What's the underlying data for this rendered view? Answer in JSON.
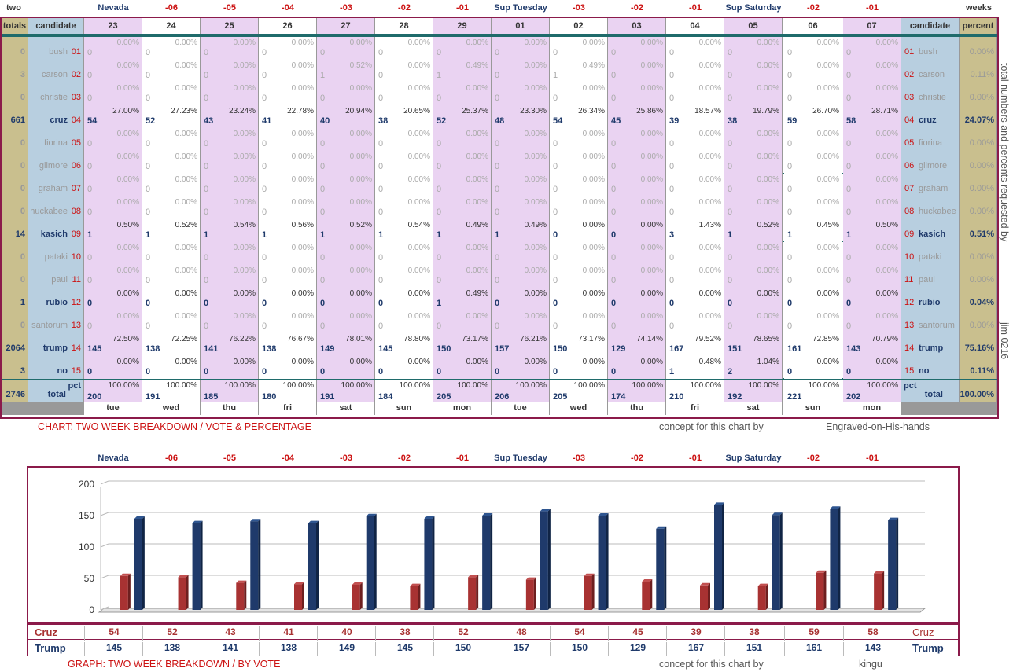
{
  "corner_left": "two",
  "corner_right": "weeks",
  "side_note": "total numbers and percents requested by",
  "side_sig": "jim 0216",
  "col_headers": {
    "totals": "totals",
    "candidate": "candidate",
    "candidate2": "candidate",
    "percent": "percent"
  },
  "top_labels": [
    "Nevada",
    "-06",
    "-05",
    "-04",
    "-03",
    "-02",
    "-01",
    "Sup Tuesday",
    "-03",
    "-02",
    "-01",
    "Sup Saturday",
    "-02",
    "-01"
  ],
  "top_label_colors": [
    "#1f3a6b",
    "#cc1111",
    "#cc1111",
    "#cc1111",
    "#cc1111",
    "#cc1111",
    "#cc1111",
    "#1f3a6b",
    "#cc1111",
    "#cc1111",
    "#cc1111",
    "#1f3a6b",
    "#cc1111",
    "#cc1111"
  ],
  "dates": [
    "23",
    "24",
    "25",
    "26",
    "27",
    "28",
    "29",
    "01",
    "02",
    "03",
    "04",
    "05",
    "06",
    "07"
  ],
  "days": [
    "tue",
    "wed",
    "thu",
    "fri",
    "sat",
    "sun",
    "mon",
    "tue",
    "wed",
    "thu",
    "fri",
    "sat",
    "sun",
    "mon"
  ],
  "candidates": [
    {
      "num": "01",
      "name": "bush",
      "total": "0",
      "pct": "0.00%",
      "main": false,
      "votes": [
        "0",
        "0",
        "0",
        "0",
        "0",
        "0",
        "0",
        "0",
        "0",
        "0",
        "0",
        "0",
        "0",
        "0"
      ],
      "pcts": [
        "0.00%",
        "0.00%",
        "0.00%",
        "0.00%",
        "0.00%",
        "0.00%",
        "0.00%",
        "0.00%",
        "0.00%",
        "0.00%",
        "0.00%",
        "0.00%",
        "0.00%",
        "0.00%"
      ]
    },
    {
      "num": "02",
      "name": "carson",
      "total": "3",
      "pct": "0.11%",
      "main": false,
      "votes": [
        "0",
        "0",
        "0",
        "0",
        "1",
        "0",
        "1",
        "0",
        "1",
        "0",
        "0",
        "0",
        "0",
        "0"
      ],
      "pcts": [
        "0.00%",
        "0.00%",
        "0.00%",
        "0.00%",
        "0.52%",
        "0.00%",
        "0.49%",
        "0.00%",
        "0.49%",
        "0.00%",
        "0.00%",
        "0.00%",
        "0.00%",
        "0.00%"
      ]
    },
    {
      "num": "03",
      "name": "christie",
      "total": "0",
      "pct": "0.00%",
      "main": false,
      "votes": [
        "0",
        "0",
        "0",
        "0",
        "0",
        "0",
        "0",
        "0",
        "0",
        "0",
        "0",
        "0",
        "0",
        "0"
      ],
      "pcts": [
        "0.00%",
        "0.00%",
        "0.00%",
        "0.00%",
        "0.00%",
        "0.00%",
        "0.00%",
        "0.00%",
        "0.00%",
        "0.00%",
        "0.00%",
        "0.00%",
        "0.00%",
        "0.00%"
      ]
    },
    {
      "num": "04",
      "name": "cruz",
      "total": "661",
      "pct": "24.07%",
      "main": true,
      "votes": [
        "54",
        "52",
        "43",
        "41",
        "40",
        "38",
        "52",
        "48",
        "54",
        "45",
        "39",
        "38",
        "59",
        "58"
      ],
      "pcts": [
        "27.00%",
        "27.23%",
        "23.24%",
        "22.78%",
        "20.94%",
        "20.65%",
        "25.37%",
        "23.30%",
        "26.34%",
        "25.86%",
        "18.57%",
        "19.79%",
        "26.70%",
        "28.71%"
      ]
    },
    {
      "num": "05",
      "name": "fiorina",
      "total": "0",
      "pct": "0.00%",
      "main": false,
      "votes": [
        "0",
        "0",
        "0",
        "0",
        "0",
        "0",
        "0",
        "0",
        "0",
        "0",
        "0",
        "0",
        "0",
        "0"
      ],
      "pcts": [
        "0.00%",
        "0.00%",
        "0.00%",
        "0.00%",
        "0.00%",
        "0.00%",
        "0.00%",
        "0.00%",
        "0.00%",
        "0.00%",
        "0.00%",
        "0.00%",
        "0.00%",
        "0.00%"
      ]
    },
    {
      "num": "06",
      "name": "gilmore",
      "total": "0",
      "pct": "0.00%",
      "main": false,
      "votes": [
        "0",
        "0",
        "0",
        "0",
        "0",
        "0",
        "0",
        "0",
        "0",
        "0",
        "0",
        "0",
        "0",
        "0"
      ],
      "pcts": [
        "0.00%",
        "0.00%",
        "0.00%",
        "0.00%",
        "0.00%",
        "0.00%",
        "0.00%",
        "0.00%",
        "0.00%",
        "0.00%",
        "0.00%",
        "0.00%",
        "0.00%",
        "0.00%"
      ]
    },
    {
      "num": "07",
      "name": "graham",
      "total": "0",
      "pct": "0.00%",
      "main": false,
      "votes": [
        "0",
        "0",
        "0",
        "0",
        "0",
        "0",
        "0",
        "0",
        "0",
        "0",
        "0",
        "0",
        "0",
        "0"
      ],
      "pcts": [
        "0.00%",
        "0.00%",
        "0.00%",
        "0.00%",
        "0.00%",
        "0.00%",
        "0.00%",
        "0.00%",
        "0.00%",
        "0.00%",
        "0.00%",
        "0.00%",
        "0.00%",
        "0.00%"
      ]
    },
    {
      "num": "08",
      "name": "huckabee",
      "total": "0",
      "pct": "0.00%",
      "main": false,
      "votes": [
        "0",
        "0",
        "0",
        "0",
        "0",
        "0",
        "0",
        "0",
        "0",
        "0",
        "0",
        "0",
        "0",
        "0"
      ],
      "pcts": [
        "0.00%",
        "0.00%",
        "0.00%",
        "0.00%",
        "0.00%",
        "0.00%",
        "0.00%",
        "0.00%",
        "0.00%",
        "0.00%",
        "0.00%",
        "0.00%",
        "0.00%",
        "0.00%"
      ]
    },
    {
      "num": "09",
      "name": "kasich",
      "total": "14",
      "pct": "0.51%",
      "main": true,
      "votes": [
        "1",
        "1",
        "1",
        "1",
        "1",
        "1",
        "1",
        "1",
        "0",
        "0",
        "3",
        "1",
        "1",
        "1"
      ],
      "pcts": [
        "0.50%",
        "0.52%",
        "0.54%",
        "0.56%",
        "0.52%",
        "0.54%",
        "0.49%",
        "0.49%",
        "0.00%",
        "0.00%",
        "1.43%",
        "0.52%",
        "0.45%",
        "0.50%"
      ]
    },
    {
      "num": "10",
      "name": "pataki",
      "total": "0",
      "pct": "0.00%",
      "main": false,
      "votes": [
        "0",
        "0",
        "0",
        "0",
        "0",
        "0",
        "0",
        "0",
        "0",
        "0",
        "0",
        "0",
        "0",
        "0"
      ],
      "pcts": [
        "0.00%",
        "0.00%",
        "0.00%",
        "0.00%",
        "0.00%",
        "0.00%",
        "0.00%",
        "0.00%",
        "0.00%",
        "0.00%",
        "0.00%",
        "0.00%",
        "0.00%",
        "0.00%"
      ]
    },
    {
      "num": "11",
      "name": "paul",
      "total": "0",
      "pct": "0.00%",
      "main": false,
      "votes": [
        "0",
        "0",
        "0",
        "0",
        "0",
        "0",
        "0",
        "0",
        "0",
        "0",
        "0",
        "0",
        "0",
        "0"
      ],
      "pcts": [
        "0.00%",
        "0.00%",
        "0.00%",
        "0.00%",
        "0.00%",
        "0.00%",
        "0.00%",
        "0.00%",
        "0.00%",
        "0.00%",
        "0.00%",
        "0.00%",
        "0.00%",
        "0.00%"
      ]
    },
    {
      "num": "12",
      "name": "rubio",
      "total": "1",
      "pct": "0.04%",
      "main": true,
      "votes": [
        "0",
        "0",
        "0",
        "0",
        "0",
        "0",
        "1",
        "0",
        "0",
        "0",
        "0",
        "0",
        "0",
        "0"
      ],
      "pcts": [
        "0.00%",
        "0.00%",
        "0.00%",
        "0.00%",
        "0.00%",
        "0.00%",
        "0.49%",
        "0.00%",
        "0.00%",
        "0.00%",
        "0.00%",
        "0.00%",
        "0.00%",
        "0.00%"
      ]
    },
    {
      "num": "13",
      "name": "santorum",
      "total": "0",
      "pct": "0.00%",
      "main": false,
      "votes": [
        "0",
        "0",
        "0",
        "0",
        "0",
        "0",
        "0",
        "0",
        "0",
        "0",
        "0",
        "0",
        "0",
        "0"
      ],
      "pcts": [
        "0.00%",
        "0.00%",
        "0.00%",
        "0.00%",
        "0.00%",
        "0.00%",
        "0.00%",
        "0.00%",
        "0.00%",
        "0.00%",
        "0.00%",
        "0.00%",
        "0.00%",
        "0.00%"
      ]
    },
    {
      "num": "14",
      "name": "trump",
      "total": "2064",
      "pct": "75.16%",
      "main": true,
      "votes": [
        "145",
        "138",
        "141",
        "138",
        "149",
        "145",
        "150",
        "157",
        "150",
        "129",
        "167",
        "151",
        "161",
        "143"
      ],
      "pcts": [
        "72.50%",
        "72.25%",
        "76.22%",
        "76.67%",
        "78.01%",
        "78.80%",
        "73.17%",
        "76.21%",
        "73.17%",
        "74.14%",
        "79.52%",
        "78.65%",
        "72.85%",
        "70.79%"
      ]
    },
    {
      "num": "15",
      "name": "no",
      "total": "3",
      "pct": "0.11%",
      "main": true,
      "votes": [
        "0",
        "0",
        "0",
        "0",
        "0",
        "0",
        "0",
        "0",
        "0",
        "0",
        "1",
        "2",
        "0",
        "0"
      ],
      "pcts": [
        "0.00%",
        "0.00%",
        "0.00%",
        "0.00%",
        "0.00%",
        "0.00%",
        "0.00%",
        "0.00%",
        "0.00%",
        "0.00%",
        "0.48%",
        "1.04%",
        "0.00%",
        "0.00%"
      ]
    }
  ],
  "totals_row": {
    "grand_total": "2746",
    "label": "total",
    "pct_label": "pct",
    "pct": "100.00%",
    "votes": [
      "200",
      "191",
      "185",
      "180",
      "191",
      "184",
      "205",
      "206",
      "205",
      "174",
      "210",
      "192",
      "221",
      "202"
    ],
    "pcts": [
      "100.00%",
      "100.00%",
      "100.00%",
      "100.00%",
      "100.00%",
      "100.00%",
      "100.00%",
      "100.00%",
      "100.00%",
      "100.00%",
      "100.00%",
      "100.00%",
      "100.00%",
      "100.00%"
    ]
  },
  "chart_caption": "CHART: TWO WEEK BREAKDOWN / VOTE & PERCENTAGE",
  "concept_label": "concept for this chart by",
  "chart_author": "Engraved-on-His-hands",
  "graph_caption": "GRAPH: TWO WEEK BREAKDOWN / BY VOTE",
  "graph_author": "kingu",
  "colors": {
    "cruz": "#a83232",
    "trump": "#1f3a6b",
    "pink": "#ead3f2",
    "tan": "#c9bf8e",
    "blue": "#b8cfe0",
    "border": "#8b1a4a"
  },
  "chart_data": {
    "type": "bar",
    "categories": [
      "Nevada",
      "-06",
      "-05",
      "-04",
      "-03",
      "-02",
      "-01",
      "Sup Tuesday",
      "-03",
      "-02",
      "-01",
      "Sup Saturday",
      "-02",
      "-01"
    ],
    "ylim": [
      0,
      200
    ],
    "yticks": [
      "0",
      "50",
      "100",
      "150",
      "200"
    ],
    "series": [
      {
        "name": "Cruz",
        "values": [
          54,
          52,
          43,
          41,
          40,
          38,
          52,
          48,
          54,
          45,
          39,
          38,
          59,
          58
        ]
      },
      {
        "name": "Trump",
        "values": [
          145,
          138,
          141,
          138,
          149,
          145,
          150,
          157,
          150,
          129,
          167,
          151,
          161,
          143
        ]
      }
    ]
  }
}
